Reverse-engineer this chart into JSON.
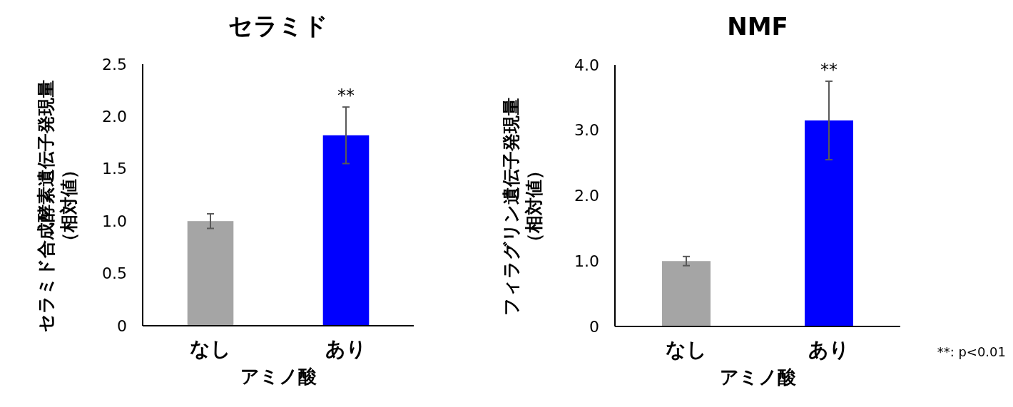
{
  "chart_data": [
    {
      "type": "bar",
      "title": "セラミド",
      "xlabel": "アミノ酸",
      "ylabel": "セラミド合成酵素遺伝子発現量（相対値）",
      "categories": [
        "なし",
        "あり"
      ],
      "values": [
        1.0,
        1.82
      ],
      "colors": [
        "#a5a5a5",
        "#0000ff"
      ],
      "errors": [
        0.07,
        0.27
      ],
      "ylim": [
        0,
        2.5
      ],
      "yticks": [
        0,
        0.5,
        {
          "value": 1,
          "label": "1.0"
        },
        1.5,
        {
          "value": 2,
          "label": "2.0"
        },
        2.5
      ],
      "annotations": [
        {
          "text": "**",
          "x": "あり",
          "y": 2.09
        }
      ]
    },
    {
      "type": "bar",
      "title": "NMF",
      "xlabel": "アミノ酸",
      "ylabel": "フィラグリン遺伝子発現量（相対値）",
      "categories": [
        "なし",
        "あり"
      ],
      "values": [
        1.0,
        3.15
      ],
      "colors": [
        "#a5a5a5",
        "#0000ff"
      ],
      "errors": [
        0.07,
        0.6
      ],
      "ylim": [
        0,
        4
      ],
      "yticks": [
        0,
        {
          "value": 1,
          "label": "1.0"
        },
        {
          "value": 2,
          "label": "2.0"
        },
        {
          "value": 3,
          "label": "3.0"
        },
        {
          "value": 4,
          "label": "4.0"
        }
      ],
      "annotations": [
        {
          "text": "**",
          "x": "あり",
          "y": 3.75
        },
        "**: p<0.01"
      ]
    }
  ]
}
